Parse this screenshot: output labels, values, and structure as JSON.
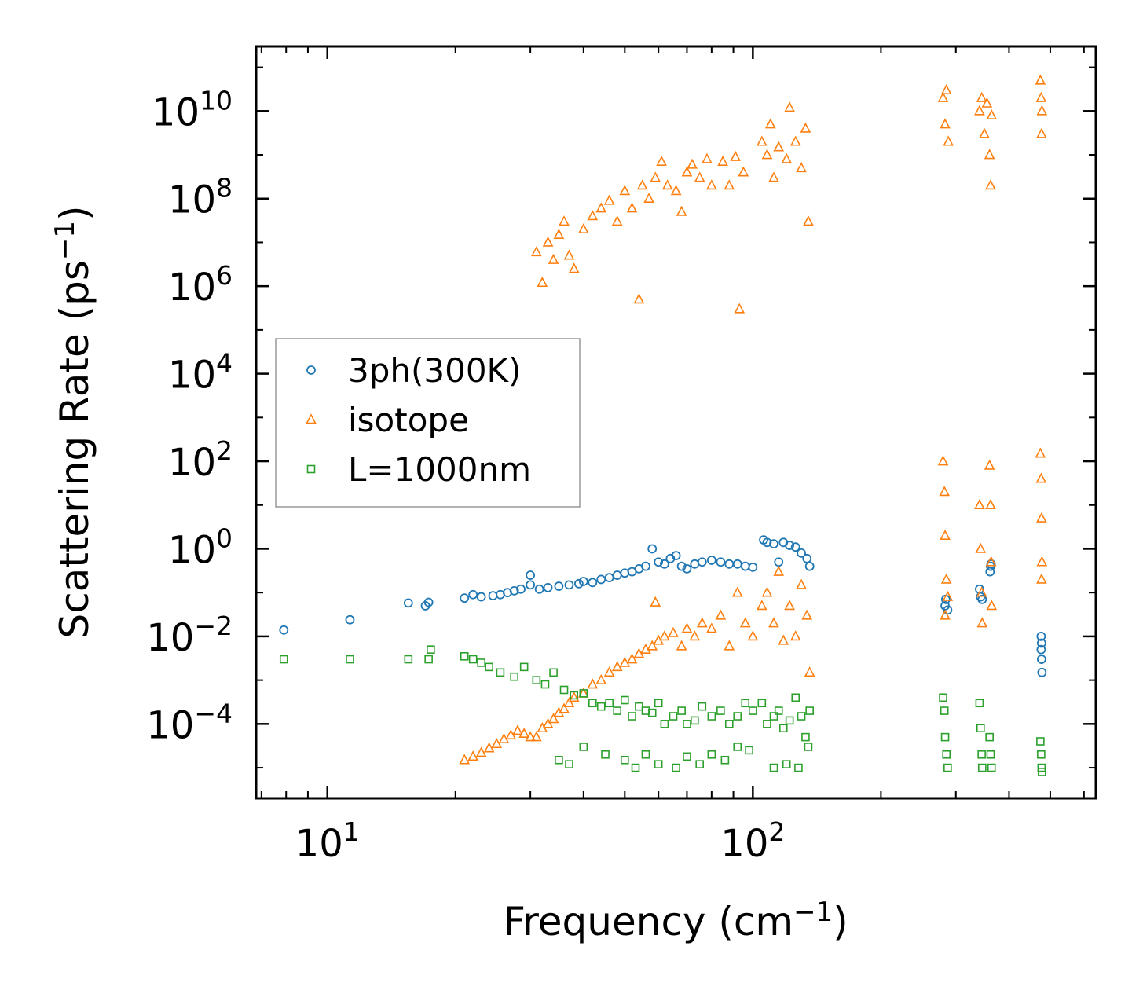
{
  "chart_data": {
    "type": "scatter",
    "title": "",
    "xlabel": "Frequency (cm",
    "xlabel_sup": "−1",
    "xlabel_end": ")",
    "ylabel": "Scattering Rate (ps",
    "ylabel_sup": "−1",
    "ylabel_end": ")",
    "xscale": "log",
    "yscale": "log",
    "xlim": [
      6.8,
      640
    ],
    "ylim": [
      2e-06,
      300000000000
    ],
    "x_ticks": [
      {
        "value": 10,
        "base": "10",
        "exp": "1"
      },
      {
        "value": 100,
        "base": "10",
        "exp": "2"
      }
    ],
    "y_ticks": [
      {
        "value": 0.0001,
        "base": "10",
        "exp": "−4"
      },
      {
        "value": 0.01,
        "base": "10",
        "exp": "−2"
      },
      {
        "value": 1,
        "base": "10",
        "exp": "0"
      },
      {
        "value": 100,
        "base": "10",
        "exp": "2"
      },
      {
        "value": 10000,
        "base": "10",
        "exp": "4"
      },
      {
        "value": 1000000,
        "base": "10",
        "exp": "6"
      },
      {
        "value": 100000000,
        "base": "10",
        "exp": "8"
      },
      {
        "value": 10000000000,
        "base": "10",
        "exp": "10"
      }
    ],
    "legend_position": "center-left",
    "series": [
      {
        "name": "3ph(300K)",
        "marker": "circle",
        "color": "#1f77b4",
        "points": [
          [
            7.9,
            0.014
          ],
          [
            11.3,
            0.024
          ],
          [
            15.5,
            0.058
          ],
          [
            17.3,
            0.06
          ],
          [
            17.0,
            0.05
          ],
          [
            21.0,
            0.075
          ],
          [
            22.0,
            0.09
          ],
          [
            23.0,
            0.08
          ],
          [
            24.5,
            0.085
          ],
          [
            25.5,
            0.09
          ],
          [
            26.5,
            0.1
          ],
          [
            27.5,
            0.11
          ],
          [
            28.5,
            0.12
          ],
          [
            30.0,
            0.15
          ],
          [
            30.0,
            0.25
          ],
          [
            31.5,
            0.12
          ],
          [
            33.0,
            0.13
          ],
          [
            35.0,
            0.14
          ],
          [
            37.0,
            0.15
          ],
          [
            39.0,
            0.16
          ],
          [
            40.0,
            0.18
          ],
          [
            42.0,
            0.17
          ],
          [
            44.0,
            0.2
          ],
          [
            46.0,
            0.22
          ],
          [
            48.0,
            0.25
          ],
          [
            50.0,
            0.28
          ],
          [
            52.0,
            0.3
          ],
          [
            54.0,
            0.35
          ],
          [
            56.0,
            0.4
          ],
          [
            58.0,
            1.0
          ],
          [
            60.0,
            0.5
          ],
          [
            62.0,
            0.45
          ],
          [
            64.0,
            0.6
          ],
          [
            66.0,
            0.7
          ],
          [
            68.0,
            0.4
          ],
          [
            70.0,
            0.35
          ],
          [
            73.0,
            0.45
          ],
          [
            76.0,
            0.5
          ],
          [
            80.0,
            0.55
          ],
          [
            84.0,
            0.5
          ],
          [
            88.0,
            0.45
          ],
          [
            92.0,
            0.45
          ],
          [
            96.0,
            0.4
          ],
          [
            100.0,
            0.38
          ],
          [
            106.0,
            1.6
          ],
          [
            108.0,
            1.4
          ],
          [
            112.0,
            1.3
          ],
          [
            115.0,
            0.5
          ],
          [
            118.0,
            1.4
          ],
          [
            122.0,
            1.2
          ],
          [
            126.0,
            1.1
          ],
          [
            130.0,
            0.8
          ],
          [
            134.0,
            0.6
          ],
          [
            136.0,
            0.4
          ],
          [
            283.0,
            0.05
          ],
          [
            284.0,
            0.07
          ],
          [
            287.0,
            0.04
          ],
          [
            341.0,
            0.12
          ],
          [
            343.0,
            0.08
          ],
          [
            346.0,
            0.07
          ],
          [
            361.0,
            0.3
          ],
          [
            362.0,
            0.4
          ],
          [
            363.0,
            0.45
          ],
          [
            476.0,
            0.01
          ],
          [
            476.0,
            0.005
          ],
          [
            477.0,
            0.003
          ],
          [
            478.0,
            0.0015
          ],
          [
            477.0,
            0.007
          ]
        ]
      },
      {
        "name": "isotope",
        "marker": "triangle",
        "color": "#ff7f0e",
        "points": [
          [
            31.0,
            6000000
          ],
          [
            32.0,
            1200000
          ],
          [
            33.0,
            10000000
          ],
          [
            34.0,
            4000000
          ],
          [
            35.0,
            15000000
          ],
          [
            36.0,
            30000000
          ],
          [
            37.0,
            5000000
          ],
          [
            38.0,
            2500000
          ],
          [
            40.0,
            20000000
          ],
          [
            42.0,
            40000000
          ],
          [
            44.0,
            60000000
          ],
          [
            46.0,
            90000000
          ],
          [
            48.0,
            30000000
          ],
          [
            50.0,
            150000000
          ],
          [
            52.0,
            60000000
          ],
          [
            54.0,
            500000
          ],
          [
            55.0,
            200000000
          ],
          [
            57.0,
            100000000
          ],
          [
            59.0,
            300000000
          ],
          [
            61.0,
            700000000
          ],
          [
            63.0,
            200000000
          ],
          [
            66.0,
            150000000
          ],
          [
            68.0,
            50000000
          ],
          [
            70.0,
            400000000
          ],
          [
            72.0,
            600000000
          ],
          [
            75.0,
            300000000
          ],
          [
            78.0,
            800000000
          ],
          [
            80.0,
            200000000
          ],
          [
            85.0,
            700000000
          ],
          [
            88.0,
            200000000
          ],
          [
            91.0,
            900000000
          ],
          [
            93.0,
            300000
          ],
          [
            95.0,
            400000000
          ],
          [
            105.0,
            2000000000
          ],
          [
            108.0,
            1000000000
          ],
          [
            110.0,
            5000000000
          ],
          [
            112.0,
            300000000
          ],
          [
            115.0,
            1500000000
          ],
          [
            120.0,
            800000000
          ],
          [
            122.0,
            12000000000
          ],
          [
            126.0,
            2000000000
          ],
          [
            130.0,
            500000000
          ],
          [
            133.0,
            4000000000
          ],
          [
            135.0,
            30000000
          ],
          [
            280.0,
            20000000000
          ],
          [
            283.0,
            5000000000
          ],
          [
            285.0,
            30000000000
          ],
          [
            288.0,
            2000000000
          ],
          [
            341.0,
            10000000000
          ],
          [
            345.0,
            20000000000
          ],
          [
            350.0,
            3000000000
          ],
          [
            355.0,
            15000000000
          ],
          [
            360.0,
            1000000000
          ],
          [
            362.0,
            200000000
          ],
          [
            364.0,
            8000000000
          ],
          [
            474.0,
            50000000000
          ],
          [
            476.0,
            20000000000
          ],
          [
            477.0,
            3000000000
          ],
          [
            478.0,
            10000000000
          ],
          [
            21.0,
            1.5e-05
          ],
          [
            22.0,
            1.8e-05
          ],
          [
            23.0,
            2.2e-05
          ],
          [
            24.0,
            2.8e-05
          ],
          [
            25.0,
            3.5e-05
          ],
          [
            26.0,
            4.5e-05
          ],
          [
            27.0,
            5.5e-05
          ],
          [
            28.0,
            7e-05
          ],
          [
            29.0,
            6e-05
          ],
          [
            30.0,
            5e-05
          ],
          [
            31.0,
            5e-05
          ],
          [
            32.0,
            8e-05
          ],
          [
            33.0,
            0.0001
          ],
          [
            34.0,
            0.00013
          ],
          [
            35.0,
            0.00018
          ],
          [
            36.0,
            0.00022
          ],
          [
            37.0,
            0.0003
          ],
          [
            38.0,
            0.0004
          ],
          [
            40.0,
            0.0005
          ],
          [
            42.0,
            0.0008
          ],
          [
            44.0,
            0.001
          ],
          [
            46.0,
            0.0015
          ],
          [
            48.0,
            0.002
          ],
          [
            50.0,
            0.0025
          ],
          [
            52.0,
            0.003
          ],
          [
            54.0,
            0.004
          ],
          [
            56.0,
            0.005
          ],
          [
            58.0,
            0.006
          ],
          [
            59.0,
            0.06
          ],
          [
            60.0,
            0.008
          ],
          [
            62.0,
            0.01
          ],
          [
            65.0,
            0.012
          ],
          [
            68.0,
            0.006
          ],
          [
            70.0,
            0.015
          ],
          [
            73.0,
            0.01
          ],
          [
            76.0,
            0.02
          ],
          [
            80.0,
            0.015
          ],
          [
            84.0,
            0.03
          ],
          [
            88.0,
            0.006
          ],
          [
            92.0,
            0.1
          ],
          [
            96.0,
            0.02
          ],
          [
            100.0,
            0.01
          ],
          [
            105.0,
            0.05
          ],
          [
            108.0,
            0.1
          ],
          [
            112.0,
            0.02
          ],
          [
            115.0,
            0.3
          ],
          [
            118.0,
            0.008
          ],
          [
            122.0,
            0.05
          ],
          [
            126.0,
            0.01
          ],
          [
            130.0,
            0.15
          ],
          [
            134.0,
            0.03
          ],
          [
            136.0,
            0.0015
          ],
          [
            280.0,
            100
          ],
          [
            282.0,
            20
          ],
          [
            283.0,
            2
          ],
          [
            285.0,
            0.2
          ],
          [
            287.0,
            0.08
          ],
          [
            283.0,
            0.03
          ],
          [
            341.0,
            10
          ],
          [
            343.0,
            1
          ],
          [
            345.0,
            0.1
          ],
          [
            346.0,
            0.02
          ],
          [
            360.0,
            80
          ],
          [
            362.0,
            10
          ],
          [
            363.0,
            0.5
          ],
          [
            364.0,
            0.05
          ],
          [
            474.0,
            150
          ],
          [
            476.0,
            40
          ],
          [
            477.0,
            5
          ],
          [
            478.0,
            0.5
          ],
          [
            477.0,
            0.2
          ]
        ]
      },
      {
        "name": "L=1000nm",
        "marker": "square",
        "color": "#2ca02c",
        "points": [
          [
            7.9,
            0.003
          ],
          [
            11.3,
            0.003
          ],
          [
            15.5,
            0.003
          ],
          [
            17.3,
            0.003
          ],
          [
            17.5,
            0.005
          ],
          [
            21.0,
            0.0035
          ],
          [
            22.0,
            0.003
          ],
          [
            23.0,
            0.0025
          ],
          [
            24.0,
            0.002
          ],
          [
            25.5,
            0.0015
          ],
          [
            27.5,
            0.0012
          ],
          [
            29.0,
            0.002
          ],
          [
            31.0,
            0.001
          ],
          [
            32.5,
            0.0008
          ],
          [
            34.0,
            0.0015
          ],
          [
            36.0,
            0.0006
          ],
          [
            38.0,
            0.00045
          ],
          [
            40.0,
            0.0005
          ],
          [
            42.0,
            0.0003
          ],
          [
            44.0,
            0.00025
          ],
          [
            46.0,
            0.0003
          ],
          [
            48.0,
            0.0002
          ],
          [
            50.0,
            0.00035
          ],
          [
            52.0,
            0.00015
          ],
          [
            54.0,
            0.00025
          ],
          [
            56.0,
            0.0002
          ],
          [
            58.0,
            0.00018
          ],
          [
            60.0,
            0.0003
          ],
          [
            62.0,
            0.0001
          ],
          [
            65.0,
            0.00015
          ],
          [
            68.0,
            0.0002
          ],
          [
            70.0,
            0.0001
          ],
          [
            73.0,
            0.00012
          ],
          [
            76.0,
            0.00025
          ],
          [
            80.0,
            0.00015
          ],
          [
            84.0,
            0.0002
          ],
          [
            88.0,
            0.0001
          ],
          [
            92.0,
            0.00015
          ],
          [
            96.0,
            0.0003
          ],
          [
            100.0,
            0.0002
          ],
          [
            105.0,
            0.0003
          ],
          [
            108.0,
            0.0001
          ],
          [
            112.0,
            0.00015
          ],
          [
            115.0,
            0.0002
          ],
          [
            118.0,
            8e-05
          ],
          [
            122.0,
            0.00012
          ],
          [
            126.0,
            0.0004
          ],
          [
            130.0,
            0.00015
          ],
          [
            133.0,
            5e-05
          ],
          [
            136.0,
            0.0002
          ],
          [
            35.0,
            1.5e-05
          ],
          [
            37.0,
            1.2e-05
          ],
          [
            40.0,
            3e-05
          ],
          [
            45.0,
            2e-05
          ],
          [
            50.0,
            1.5e-05
          ],
          [
            53.0,
            1e-05
          ],
          [
            56.0,
            2e-05
          ],
          [
            60.0,
            1.2e-05
          ],
          [
            66.0,
            1e-05
          ],
          [
            70.0,
            1.8e-05
          ],
          [
            75.0,
            1.2e-05
          ],
          [
            80.0,
            2e-05
          ],
          [
            86.0,
            1.5e-05
          ],
          [
            92.0,
            3e-05
          ],
          [
            98.0,
            2.5e-05
          ],
          [
            112.0,
            1e-05
          ],
          [
            120.0,
            1.2e-05
          ],
          [
            128.0,
            1e-05
          ],
          [
            135.0,
            3e-05
          ],
          [
            280.0,
            0.0004
          ],
          [
            282.0,
            0.0002
          ],
          [
            283.0,
            5e-05
          ],
          [
            285.0,
            2e-05
          ],
          [
            287.0,
            1e-05
          ],
          [
            341.0,
            0.0003
          ],
          [
            343.0,
            8e-05
          ],
          [
            345.0,
            2e-05
          ],
          [
            346.0,
            1e-05
          ],
          [
            360.0,
            5e-05
          ],
          [
            362.0,
            2e-05
          ],
          [
            364.0,
            1e-05
          ],
          [
            474.0,
            4e-05
          ],
          [
            476.0,
            2e-05
          ],
          [
            477.0,
            1e-05
          ],
          [
            478.0,
            8e-06
          ]
        ]
      }
    ]
  }
}
